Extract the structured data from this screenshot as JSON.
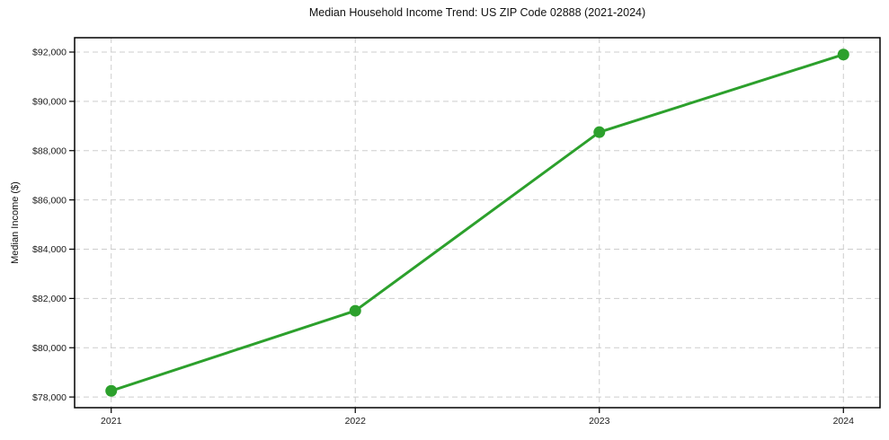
{
  "chart_data": {
    "type": "line",
    "title": "Median Household Income Trend: US ZIP Code 02888 (2021-2024)",
    "xlabel": "",
    "ylabel": "Median Income ($)",
    "categories": [
      2021,
      2022,
      2023,
      2024
    ],
    "x_tick_labels": [
      "2021",
      "2022",
      "2023",
      "2024"
    ],
    "series": [
      {
        "name": "median-household-income",
        "values": [
          78250,
          81500,
          88750,
          91900
        ]
      }
    ],
    "y_ticks": [
      78000,
      80000,
      82000,
      84000,
      86000,
      88000,
      90000,
      92000
    ],
    "y_tick_labels": [
      "$78,000",
      "$80,000",
      "$82,000",
      "$84,000",
      "$86,000",
      "$88,000",
      "$90,000",
      "$92,000"
    ],
    "xlim": [
      2020.85,
      2024.15
    ],
    "ylim": [
      77567,
      92583
    ],
    "grid": true,
    "legend_position": "none",
    "colors": {
      "line": "#2ca02c",
      "marker": "#2ca02c",
      "grid": "#cdcdcd",
      "axis": "#000000",
      "tick_text": "#1a1a1a",
      "background": "#ffffff"
    },
    "style": {
      "line_width": 3,
      "marker_radius": 6.5,
      "grid_dash": "6 4"
    }
  }
}
